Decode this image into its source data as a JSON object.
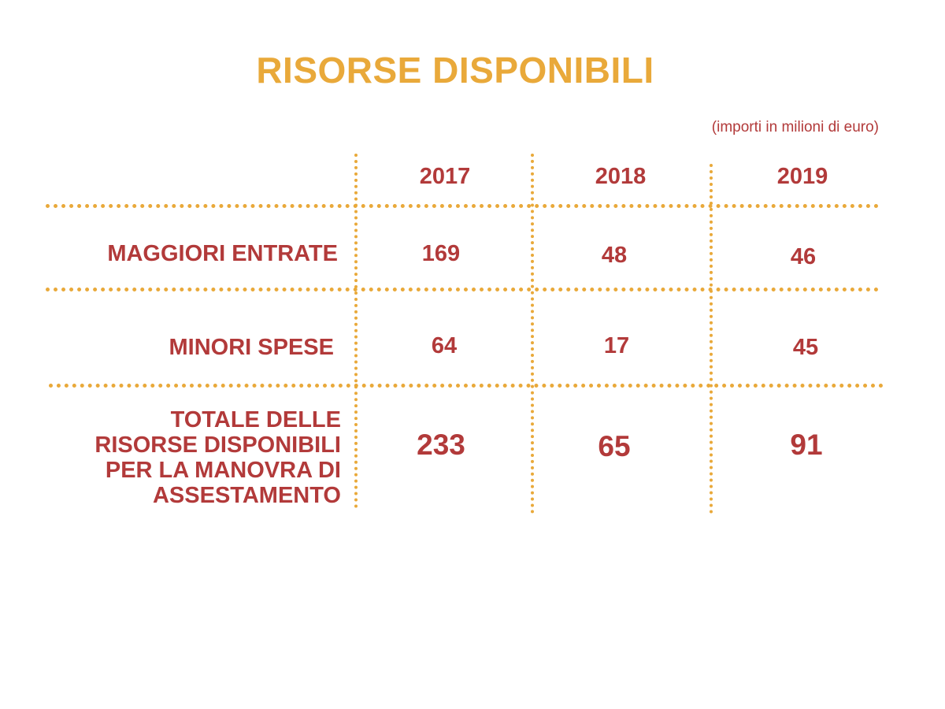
{
  "chart_data": {
    "type": "table",
    "title": "RISORSE DISPONIBILI",
    "subtitle": "(importi in milioni di euro)",
    "columns": [
      "2017",
      "2018",
      "2019"
    ],
    "rows": [
      {
        "label": "MAGGIORI ENTRATE",
        "values": [
          "169",
          "48",
          "46"
        ]
      },
      {
        "label": "MINORI SPESE",
        "values": [
          "64",
          "17",
          "45"
        ]
      },
      {
        "label": "TOTALE DELLE RISORSE DISPONIBILI PER LA MANOVRA DI ASSESTAMENTO",
        "label_lines": [
          "TOTALE DELLE",
          "RISORSE DISPONIBILI",
          "PER LA MANOVRA DI",
          "ASSESTAMENTO"
        ],
        "values": [
          "233",
          "65",
          "91"
        ]
      }
    ]
  },
  "colors": {
    "title": "#e9a93a",
    "text": "#b23a3a",
    "grid": "#e9a93a"
  }
}
